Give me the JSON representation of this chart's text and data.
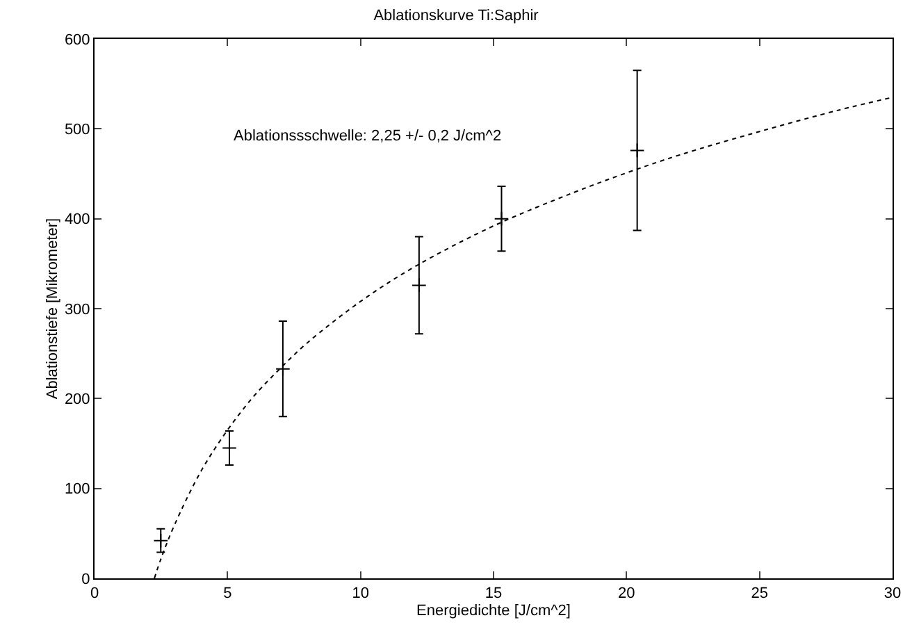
{
  "chart_data": {
    "type": "scatter",
    "title": "Ablationskurve Ti:Saphir",
    "xlabel": "Energiedichte [J/cm^2]",
    "ylabel": "Ablationstiefe [Mikrometer]",
    "annotations": [
      "Ablationssschwelle: 2,25 +/- 0,2 J/cm^2"
    ],
    "xlim": [
      0,
      30
    ],
    "xticks": [
      0,
      5,
      10,
      15,
      20,
      25,
      30
    ],
    "ylim": [
      0,
      600
    ],
    "yticks": [
      0,
      100,
      200,
      300,
      400,
      500,
      600
    ],
    "grid": false,
    "series": [
      {
        "marker": "cross",
        "color": "#000000",
        "x": [
          2.49,
          5.07,
          7.08,
          12.2,
          15.3,
          20.4
        ],
        "values": [
          42,
          145,
          233,
          326,
          400,
          476
        ],
        "errors": [
          13,
          19,
          53,
          54,
          36,
          89
        ]
      },
      {
        "type": "line",
        "line_style": "dashed",
        "color": "#000000",
        "x": [
          2.25,
          2.5,
          3,
          4,
          5,
          6,
          7,
          8,
          10,
          12,
          15,
          18,
          20,
          22,
          25,
          28,
          30
        ],
        "values": [
          0,
          22,
          59,
          119,
          165,
          203,
          234,
          262,
          308,
          346,
          392,
          429,
          451,
          471,
          497,
          521,
          535
        ]
      }
    ]
  }
}
